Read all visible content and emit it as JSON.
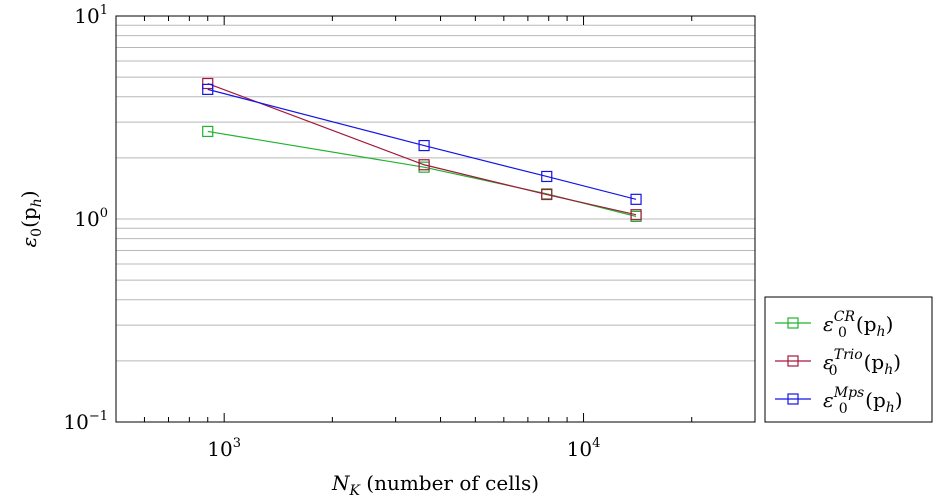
{
  "chart_data": {
    "type": "line",
    "x_scale": "log",
    "y_scale": "log",
    "xlim": [
      500,
      30000
    ],
    "ylim": [
      0.1,
      10
    ],
    "xlabel": "N_K (number of cells)",
    "xlabel_parts": {
      "symbol": "N",
      "subscript": "K",
      "text": " (number of cells)"
    },
    "ylabel": "ε_0(p_h)",
    "ylabel_parts": {
      "symbol": "ε",
      "subscript": "0",
      "text": "(p",
      "text_sub": "h",
      "text_end": ")"
    },
    "x_ticks": [
      {
        "value": 1000,
        "base": "10",
        "exp": "3"
      },
      {
        "value": 10000,
        "base": "10",
        "exp": "4"
      }
    ],
    "y_ticks": [
      {
        "value": 10,
        "base": "10",
        "exp": "1"
      },
      {
        "value": 1,
        "base": "10",
        "exp": "0"
      },
      {
        "value": 0.1,
        "base": "10",
        "exp": "−1"
      }
    ],
    "grid": {
      "y_major": true,
      "y_minor": true,
      "x": false
    },
    "legend_position": "outside-right-bottom",
    "series": [
      {
        "name": "ε_0^CR(p_h)",
        "sup": "CR",
        "color": "#1fb32e",
        "marker": "square",
        "x": [
          900,
          3600,
          7900,
          14000
        ],
        "y": [
          2.7,
          1.8,
          1.33,
          1.03
        ]
      },
      {
        "name": "ε_0^Trio(p_h)",
        "sup": "Trio",
        "color": "#a3193c",
        "marker": "square",
        "x": [
          900,
          3600,
          7900,
          14000
        ],
        "y": [
          4.65,
          1.85,
          1.32,
          1.05
        ]
      },
      {
        "name": "ε_0^Mps(p_h)",
        "sup": "Mps",
        "color": "#1414e6",
        "marker": "square",
        "x": [
          900,
          3600,
          7900,
          14000
        ],
        "y": [
          4.35,
          2.3,
          1.62,
          1.25
        ]
      }
    ]
  }
}
